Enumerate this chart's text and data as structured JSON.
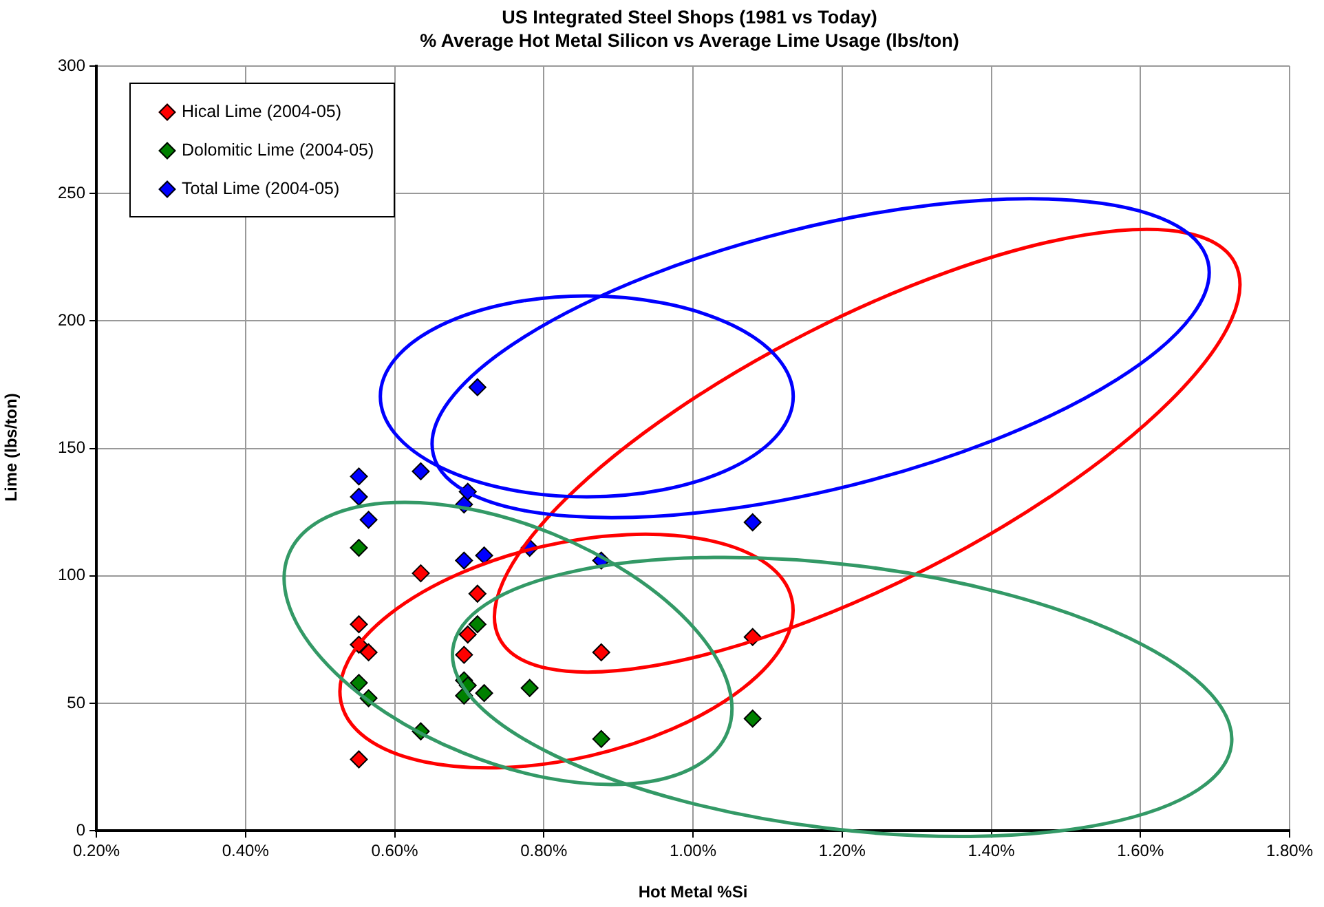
{
  "chart_data": {
    "type": "scatter",
    "title": "US Integrated Steel Shops (1981 vs Today)",
    "subtitle": "% Average Hot Metal Silicon vs Average Lime Usage (lbs/ton)",
    "xlabel": "Hot Metal %Si",
    "ylabel": "Lime (lbs/ton)",
    "xlim": [
      0.2,
      1.8
    ],
    "xticks": [
      {
        "value": 0.2,
        "label": "0.20%"
      },
      {
        "value": 0.4,
        "label": "0.40%"
      },
      {
        "value": 0.6,
        "label": "0.60%"
      },
      {
        "value": 0.8,
        "label": "0.80%"
      },
      {
        "value": 1.0,
        "label": "1.00%"
      },
      {
        "value": 1.2,
        "label": "1.20%"
      },
      {
        "value": 1.4,
        "label": "1.40%"
      },
      {
        "value": 1.6,
        "label": "1.60%"
      },
      {
        "value": 1.8,
        "label": "1.80%"
      }
    ],
    "ylim": [
      0,
      300
    ],
    "yticks": [
      0,
      50,
      100,
      150,
      200,
      250,
      300
    ],
    "grid": true,
    "legend": "top left",
    "marker": "diamond",
    "series": [
      {
        "name": "Hical Lime (2004-05)",
        "color": "#ff0000",
        "x": [
          0.552,
          0.552,
          0.565,
          0.635,
          0.693,
          0.698,
          0.711,
          0.877,
          1.08,
          0.552
        ],
        "values": [
          81,
          73,
          70,
          101,
          69,
          77,
          93,
          70,
          76,
          28
        ]
      },
      {
        "name": "Dolomitic Lime (2004-05)",
        "color": "#008000",
        "x": [
          0.552,
          0.552,
          0.565,
          0.635,
          0.693,
          0.693,
          0.698,
          0.711,
          0.72,
          0.781,
          0.877,
          1.08
        ],
        "values": [
          111,
          58,
          52,
          39,
          59,
          53,
          57,
          81,
          54,
          56,
          36,
          44
        ]
      },
      {
        "name": "Total Lime (2004-05)",
        "color": "#0000ff",
        "x": [
          0.552,
          0.552,
          0.565,
          0.635,
          0.693,
          0.698,
          0.711,
          0.693,
          0.72,
          0.781,
          0.877,
          1.08
        ],
        "values": [
          139,
          131,
          122,
          141,
          128,
          133,
          174,
          106,
          108,
          111,
          106,
          121
        ]
      }
    ]
  }
}
